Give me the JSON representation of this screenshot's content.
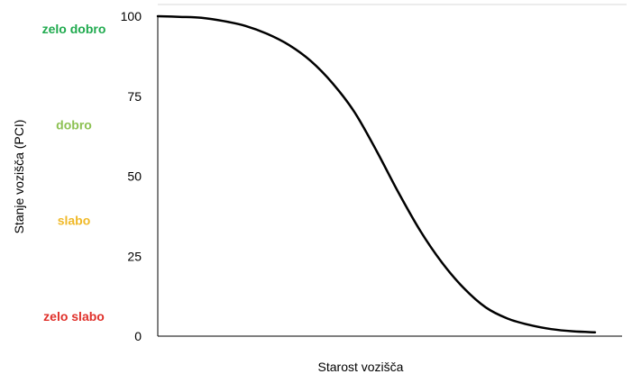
{
  "chart_data": {
    "type": "line",
    "title": "",
    "xlabel": "Starost vozišča",
    "ylabel": "Stanje vozišča (PCI)",
    "ylim": [
      0,
      100
    ],
    "yticks": [
      "0",
      "25",
      "50",
      "75",
      "100"
    ],
    "x_ticks_shown": false,
    "grid": false,
    "series": [
      {
        "color": "#000000",
        "x": [
          0,
          5,
          10,
          15,
          20,
          25,
          30,
          35,
          40,
          45,
          50,
          55,
          60,
          65,
          70,
          75,
          80,
          85,
          90,
          95,
          100
        ],
        "y": [
          100,
          99.8,
          99.5,
          98.5,
          97,
          94.5,
          91,
          86,
          79,
          70,
          58,
          45,
          33,
          23,
          15,
          9,
          5.5,
          3.5,
          2.2,
          1.5,
          1.2
        ]
      }
    ],
    "condition_labels": [
      {
        "text": "zelo dobro",
        "color": "#1faa4e"
      },
      {
        "text": "dobro",
        "color": "#8cc152"
      },
      {
        "text": "slabo",
        "color": "#f0b928"
      },
      {
        "text": "zelo slabo",
        "color": "#e0302a"
      }
    ]
  }
}
